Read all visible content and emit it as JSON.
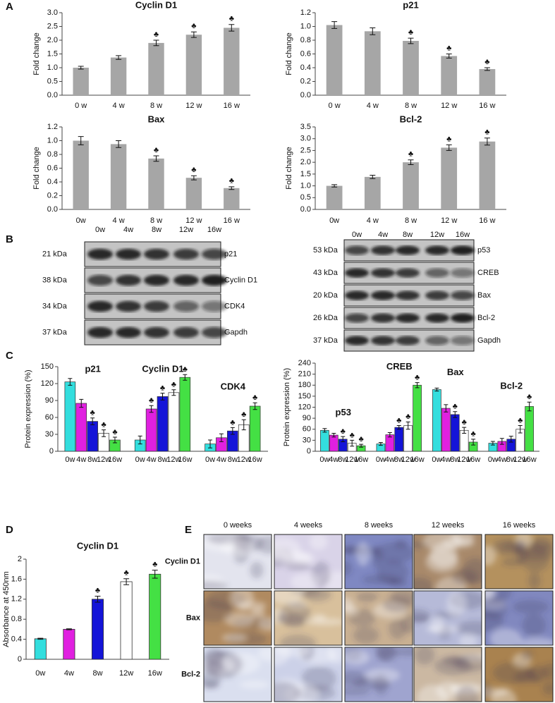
{
  "panel_labels": [
    "A",
    "B",
    "C",
    "D",
    "E"
  ],
  "chart_data": [
    {
      "type": "bar",
      "title": "Cyclin D1",
      "ylabel": "Fold change",
      "categories": [
        "0 w",
        "4 w",
        "8 w",
        "12 w",
        "16 w"
      ],
      "values": [
        1.0,
        1.37,
        1.9,
        2.2,
        2.45
      ],
      "errors": [
        0.05,
        0.07,
        0.1,
        0.1,
        0.12
      ],
      "markers": [
        null,
        null,
        "♣",
        "♣",
        "♣"
      ],
      "color": "#a6a6a6",
      "ylim": [
        0,
        3
      ],
      "yticks": [
        {
          "value": 0,
          "label": "0.0"
        },
        0.5,
        {
          "value": 1,
          "label": "1.0"
        },
        1.5,
        {
          "value": 2,
          "label": "2.0"
        },
        2.5,
        {
          "value": 3,
          "label": "3.0"
        }
      ]
    },
    {
      "type": "bar",
      "title": "p21",
      "ylabel": "Fold change",
      "categories": [
        "0 w",
        "4 w",
        "8 w",
        "12 w",
        "16 w"
      ],
      "values": [
        1.02,
        0.93,
        0.79,
        0.57,
        0.38
      ],
      "errors": [
        0.05,
        0.05,
        0.04,
        0.03,
        0.02
      ],
      "markers": [
        null,
        null,
        "♣",
        "♣",
        "♣"
      ],
      "color": "#a6a6a6",
      "ylim": [
        0,
        1.2
      ],
      "yticks": [
        {
          "value": 0,
          "label": "0.0"
        },
        0.2,
        0.4,
        0.6,
        0.8,
        {
          "value": 1,
          "label": "1.0"
        },
        1.2
      ]
    },
    {
      "type": "bar",
      "title": "Bax",
      "ylabel": "Fold change",
      "categories": [
        "0w",
        "4 w",
        "8 w",
        "12 w",
        "16 w"
      ],
      "values": [
        1.0,
        0.95,
        0.74,
        0.46,
        0.31
      ],
      "errors": [
        0.06,
        0.05,
        0.04,
        0.03,
        0.02
      ],
      "markers": [
        null,
        null,
        "♣",
        "♣",
        "♣"
      ],
      "color": "#a6a6a6",
      "ylim": [
        0,
        1.2
      ],
      "yticks": [
        {
          "value": 0,
          "label": "0.0"
        },
        0.2,
        0.4,
        0.6,
        0.8,
        {
          "value": 1,
          "label": "1.0"
        },
        1.2
      ]
    },
    {
      "type": "bar",
      "title": "Bcl-2",
      "ylabel": "Fold change",
      "categories": [
        "0w",
        "4 w",
        "8 w",
        "12 w",
        "16 w"
      ],
      "values": [
        1.0,
        1.38,
        2.0,
        2.62,
        2.88
      ],
      "errors": [
        0.05,
        0.07,
        0.1,
        0.12,
        0.15
      ],
      "markers": [
        null,
        null,
        "♣",
        "♣",
        "♣"
      ],
      "color": "#a6a6a6",
      "ylim": [
        0,
        3.5
      ],
      "yticks": [
        {
          "value": 0,
          "label": "0.0"
        },
        0.5,
        {
          "value": 1,
          "label": "1.0"
        },
        1.5,
        {
          "value": 2,
          "label": "2.0"
        },
        2.5,
        {
          "value": 3,
          "label": "3.0"
        },
        3.5
      ]
    },
    {
      "type": "grouped_bar",
      "ylabel": "Protein expression (%)",
      "edgecolor": "#333333",
      "categories": [
        "p21",
        "Cyclin D1",
        "CDK4"
      ],
      "series": [
        {
          "name": "0w",
          "color": "#33dede",
          "values": [
            123,
            20,
            13
          ],
          "errors": [
            6,
            7,
            7
          ],
          "markers": [
            null,
            null,
            null
          ]
        },
        {
          "name": "4w",
          "color": "#e020e0",
          "values": [
            85,
            75,
            24
          ],
          "errors": [
            7,
            6,
            7
          ],
          "markers": [
            null,
            "♣",
            null
          ]
        },
        {
          "name": "8w",
          "color": "#1414d8",
          "values": [
            53,
            97,
            36
          ],
          "errors": [
            6,
            6,
            6
          ],
          "markers": [
            "♣",
            "♣",
            "♣"
          ]
        },
        {
          "name": "12w",
          "color": "#ffffff",
          "values": [
            32,
            104,
            47
          ],
          "errors": [
            6,
            5,
            9
          ],
          "markers": [
            "♣",
            "♣",
            "♣"
          ]
        },
        {
          "name": "16w",
          "color": "#44e044",
          "values": [
            20,
            131,
            80
          ],
          "errors": [
            5,
            5,
            6
          ],
          "markers": [
            "♣",
            "♣",
            "♣"
          ]
        }
      ],
      "ylim": [
        0,
        150
      ],
      "yticks": [
        0,
        30,
        60,
        90,
        120,
        150
      ]
    },
    {
      "type": "grouped_bar",
      "ylabel": "Protein expression (%)",
      "edgecolor": "#333333",
      "categories": [
        "p53",
        "CREB",
        "Bax",
        "Bcl-2"
      ],
      "series": [
        {
          "name": "0w",
          "color": "#33dede",
          "values": [
            57,
            20,
            168,
            22
          ],
          "errors": [
            5,
            4,
            4,
            5
          ],
          "markers": [
            null,
            null,
            null,
            null
          ]
        },
        {
          "name": "4w",
          "color": "#e020e0",
          "values": [
            44,
            45,
            117,
            27
          ],
          "errors": [
            5,
            6,
            10,
            8
          ],
          "markers": [
            null,
            null,
            null,
            null
          ]
        },
        {
          "name": "8w",
          "color": "#1414d8",
          "values": [
            33,
            65,
            100,
            33
          ],
          "errors": [
            7,
            5,
            8,
            8
          ],
          "markers": [
            "♣",
            "♣",
            "♣",
            null
          ]
        },
        {
          "name": "12w",
          "color": "#ffffff",
          "values": [
            22,
            70,
            57,
            60
          ],
          "errors": [
            8,
            10,
            8,
            10
          ],
          "markers": [
            "♣",
            "♣",
            "♣",
            "♣"
          ]
        },
        {
          "name": "16w",
          "color": "#44e044",
          "values": [
            15,
            180,
            25,
            122
          ],
          "errors": [
            4,
            7,
            8,
            12
          ],
          "markers": [
            "♣",
            "♣",
            "♣",
            "♣"
          ]
        }
      ],
      "ylim": [
        0,
        240
      ],
      "yticks": [
        0,
        30,
        60,
        90,
        120,
        150,
        180,
        210,
        240
      ]
    },
    {
      "type": "bar",
      "title": "Cyclin D1",
      "ylabel": "Absorbance at 450nm",
      "edgecolor": "#333333",
      "categories": [
        "0w",
        "4w",
        "8w",
        "12w",
        "16w"
      ],
      "values": [
        0.41,
        0.6,
        1.2,
        1.55,
        1.7
      ],
      "errors": [
        0.01,
        0.01,
        0.06,
        0.06,
        0.08
      ],
      "markers": [
        null,
        null,
        "♣",
        "♣",
        "♣"
      ],
      "colors": [
        "#33dede",
        "#e020e0",
        "#1414d8",
        "#ffffff",
        "#44e044"
      ],
      "ylim": [
        0,
        2
      ],
      "yticks": [
        0,
        0.4,
        0.8,
        1.2,
        1.6,
        2
      ]
    }
  ],
  "blots": [
    {
      "columns": [
        "0w",
        "4w",
        "8w",
        "12w",
        "16w"
      ],
      "rows": [
        {
          "kda": "21 kDa",
          "protein": "p21"
        },
        {
          "kda": "38 kDa",
          "protein": "Cyclin D1"
        },
        {
          "kda": "34 kDa",
          "protein": "CDK4"
        },
        {
          "kda": "37 kDa",
          "protein": "Gapdh"
        }
      ]
    },
    {
      "columns": [
        "0w",
        "4w",
        "8w",
        "12w",
        "16w"
      ],
      "rows": [
        {
          "kda": "53 kDa",
          "protein": "p53"
        },
        {
          "kda": "43 kDa",
          "protein": "CREB"
        },
        {
          "kda": "20 kDa",
          "protein": "Bax"
        },
        {
          "kda": "26 kDa",
          "protein": "Bcl-2"
        },
        {
          "kda": "37 kDa",
          "protein": "Gapdh"
        }
      ]
    }
  ],
  "ihc": {
    "columns": [
      "0 weeks",
      "4 weeks",
      "8 weeks",
      "12 weeks",
      "16 weeks"
    ],
    "rows": [
      "Cyclin D1",
      "Bax",
      "Bcl-2"
    ]
  }
}
